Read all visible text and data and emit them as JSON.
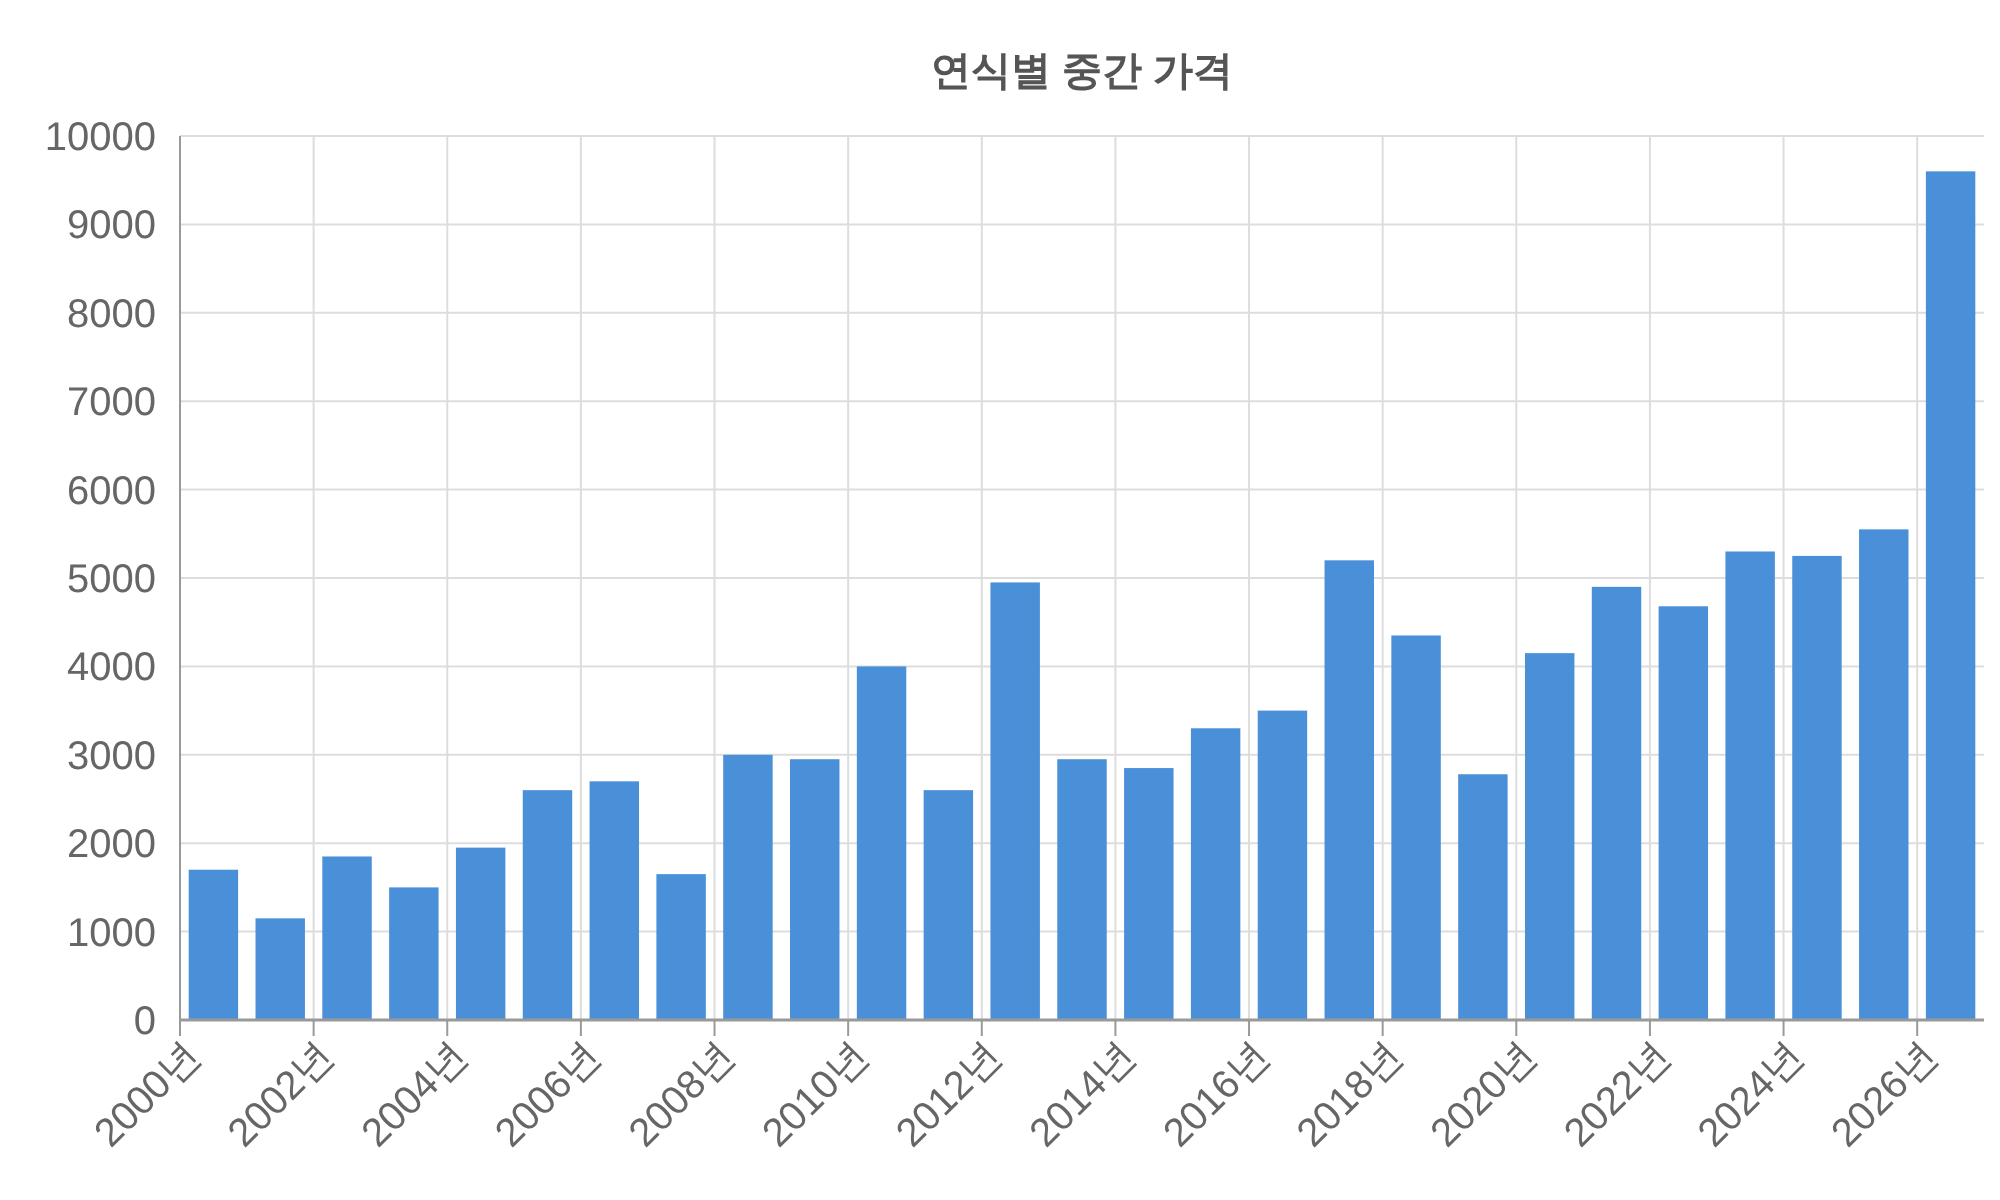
{
  "chart_data": {
    "type": "bar",
    "title": "연식별 중간 가격",
    "categories": [
      "2000년",
      null,
      "2002년",
      null,
      "2004년",
      null,
      "2006년",
      null,
      "2008년",
      null,
      "2010년",
      null,
      "2012년",
      null,
      "2014년",
      null,
      "2016년",
      null,
      "2018년",
      null,
      "2020년",
      null,
      "2022년",
      null,
      "2024년",
      null,
      "2026년"
    ],
    "values": [
      1700,
      1150,
      1850,
      1500,
      1950,
      2600,
      2700,
      1650,
      3000,
      2950,
      4000,
      2600,
      4950,
      2950,
      2850,
      3300,
      3500,
      5200,
      4350,
      2780,
      4150,
      4900,
      4680,
      5300,
      5250,
      5550,
      9600
    ],
    "color": "#4a90d9",
    "ylim": [
      0,
      10000
    ],
    "yticks": [
      0,
      1000,
      2000,
      3000,
      4000,
      5000,
      6000,
      7000,
      8000,
      9000,
      10000
    ],
    "grid": true
  }
}
